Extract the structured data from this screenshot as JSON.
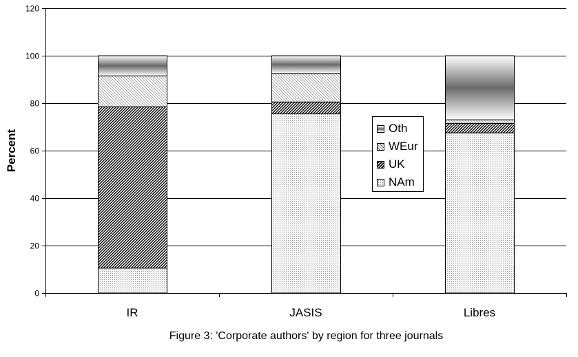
{
  "chart_data": {
    "type": "bar",
    "stacked": true,
    "categories": [
      "IR",
      "JASIS",
      "Libres"
    ],
    "series": [
      {
        "name": "NAm",
        "values": [
          10.5,
          75.5,
          67.5
        ],
        "pattern": "dots"
      },
      {
        "name": "UK",
        "values": [
          68,
          5,
          4
        ],
        "pattern": "dense-hatch"
      },
      {
        "name": "WEur",
        "values": [
          13,
          12,
          1.5
        ],
        "pattern": "light-hatch"
      },
      {
        "name": "Oth",
        "values": [
          8.5,
          7.5,
          27
        ],
        "pattern": "gradient"
      }
    ],
    "title": "Figure 3: 'Corporate authors' by region for three journals",
    "xlabel": "",
    "ylabel": "Percent",
    "ylim": [
      0,
      120
    ],
    "yticks": [
      0,
      20,
      40,
      60,
      80,
      100,
      120
    ],
    "grid": true,
    "legend_position": "inside-center-right",
    "legend_order": [
      "Oth",
      "WEur",
      "UK",
      "NAm"
    ]
  }
}
